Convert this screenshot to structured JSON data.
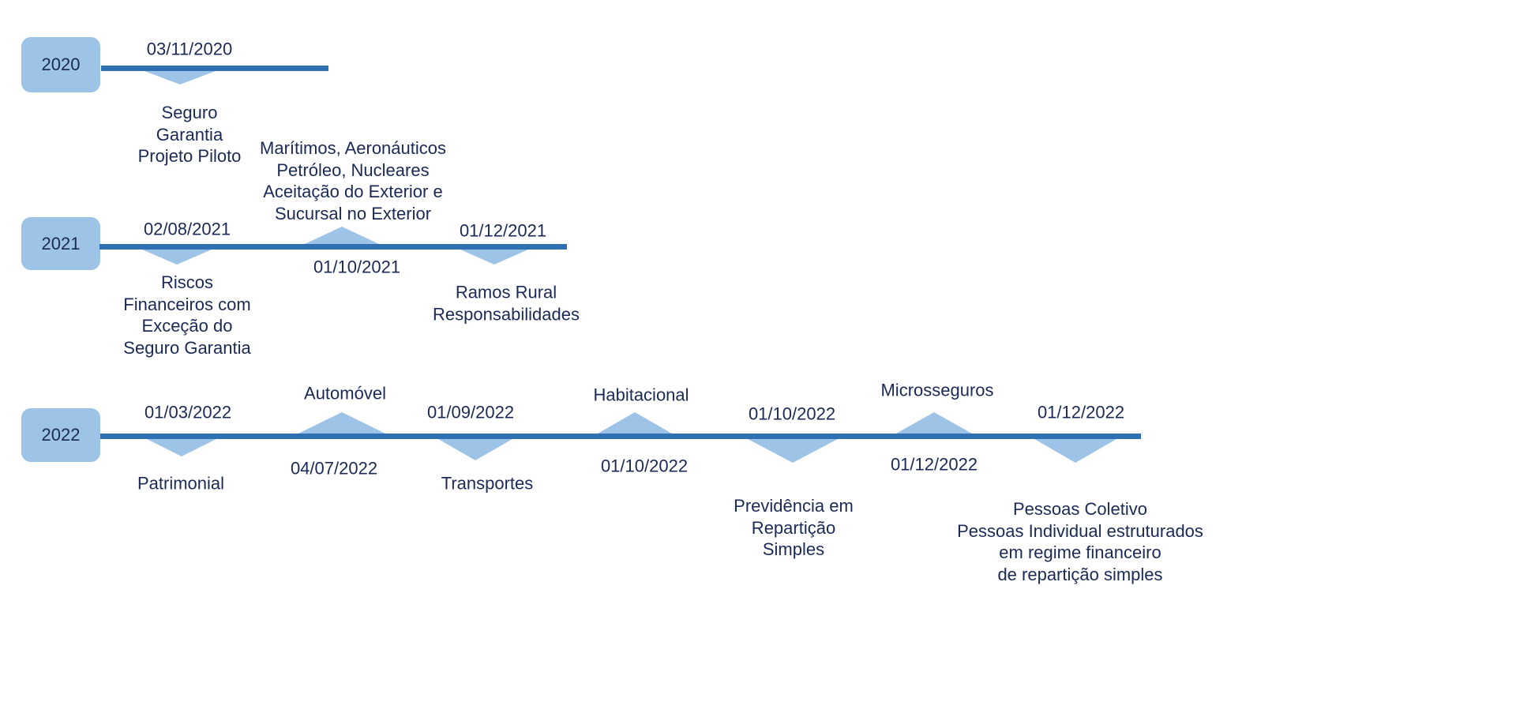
{
  "colors": {
    "line": "#2f70b2",
    "marker": "#9dc3e6",
    "text": "#1b2a55"
  },
  "rows": [
    {
      "year": "2020",
      "events": [
        {
          "date": "03/11/2020",
          "direction": "down",
          "label": [
            "Seguro",
            "Garantia",
            "Projeto Piloto"
          ]
        }
      ]
    },
    {
      "year": "2021",
      "events": [
        {
          "date": "02/08/2021",
          "direction": "down",
          "label": [
            "Riscos",
            "Financeiros com",
            "Exceção do",
            "Seguro Garantia"
          ]
        },
        {
          "date": "01/10/2021",
          "direction": "up",
          "label": [
            "Marítimos, Aeronáuticos",
            "Petróleo, Nucleares",
            "Aceitação do Exterior e",
            "Sucursal no Exterior"
          ]
        },
        {
          "date": "01/12/2021",
          "direction": "down",
          "label": [
            "Ramos Rural",
            "Responsabilidades"
          ]
        }
      ]
    },
    {
      "year": "2022",
      "events": [
        {
          "date": "01/03/2022",
          "direction": "down",
          "label": [
            "Patrimonial"
          ]
        },
        {
          "date": "04/07/2022",
          "direction": "up",
          "label": [
            "Automóvel"
          ]
        },
        {
          "date": "01/09/2022",
          "direction": "down",
          "label": [
            "Transportes"
          ]
        },
        {
          "date": "01/10/2022",
          "direction": "up",
          "label": [
            "Habitacional"
          ]
        },
        {
          "date": "01/10/2022",
          "direction": "down",
          "label": [
            "Previdência em",
            "Repartição",
            "Simples"
          ]
        },
        {
          "date": "01/12/2022",
          "direction": "up",
          "label": [
            "Microsseguros"
          ]
        },
        {
          "date": "01/12/2022",
          "direction": "down",
          "label": [
            "Pessoas Coletivo",
            "Pessoas Individual estruturados",
            "em regime financeiro",
            "de repartição simples"
          ]
        }
      ]
    }
  ]
}
